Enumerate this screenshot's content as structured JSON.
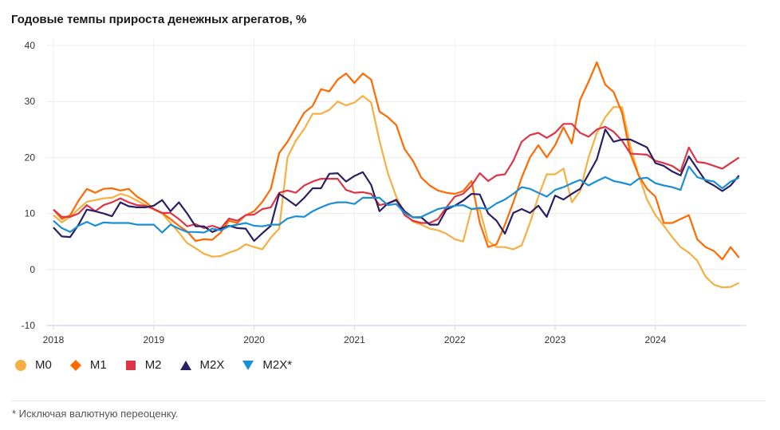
{
  "chart_data": {
    "type": "line",
    "title": "Годовые темпы прироста денежных агрегатов, %",
    "xlabel": "",
    "ylabel": "",
    "ylim": [
      -10,
      40
    ],
    "yticks": [
      "40",
      "30",
      "20",
      "10",
      "0",
      "-10"
    ],
    "xticks": [
      "2018",
      "2019",
      "2020",
      "2021",
      "2022",
      "2023",
      "2024"
    ],
    "grid": true,
    "legend_position": "bottom-left",
    "x": [
      "2018-01",
      "2018-02",
      "2018-03",
      "2018-04",
      "2018-05",
      "2018-06",
      "2018-07",
      "2018-08",
      "2018-09",
      "2018-10",
      "2018-11",
      "2018-12",
      "2019-01",
      "2019-02",
      "2019-03",
      "2019-04",
      "2019-05",
      "2019-06",
      "2019-07",
      "2019-08",
      "2019-09",
      "2019-10",
      "2019-11",
      "2019-12",
      "2020-01",
      "2020-02",
      "2020-03",
      "2020-04",
      "2020-05",
      "2020-06",
      "2020-07",
      "2020-08",
      "2020-09",
      "2020-10",
      "2020-11",
      "2020-12",
      "2021-01",
      "2021-02",
      "2021-03",
      "2021-04",
      "2021-05",
      "2021-06",
      "2021-07",
      "2021-08",
      "2021-09",
      "2021-10",
      "2021-11",
      "2021-12",
      "2022-01",
      "2022-02",
      "2022-03",
      "2022-04",
      "2022-05",
      "2022-06",
      "2022-07",
      "2022-08",
      "2022-09",
      "2022-10",
      "2022-11",
      "2022-12",
      "2023-01",
      "2023-02",
      "2023-03",
      "2023-04",
      "2023-05",
      "2023-06",
      "2023-07",
      "2023-08",
      "2023-09",
      "2023-10",
      "2023-11",
      "2023-12",
      "2024-01",
      "2024-02",
      "2024-03",
      "2024-04",
      "2024-05",
      "2024-06",
      "2024-07",
      "2024-08",
      "2024-09",
      "2024-10",
      "2024-11"
    ],
    "series": [
      {
        "name": "M0",
        "color": "#f5b041",
        "marker": "circle",
        "values": [
          9.7,
          8.4,
          9.4,
          10.8,
          12.1,
          12.4,
          12.7,
          12.8,
          13.5,
          13.1,
          12.3,
          11.5,
          10.7,
          10,
          8.3,
          6.6,
          4.7,
          3.8,
          2.8,
          2.3,
          2.4,
          3,
          3.5,
          4.5,
          4.0,
          3.6,
          5.7,
          7.3,
          20,
          23,
          25.1,
          27.8,
          27.8,
          28.5,
          30,
          29.3,
          29.8,
          31,
          29.8,
          23,
          17.2,
          13,
          10,
          8.5,
          8,
          7.3,
          7,
          6.4,
          5.4,
          5,
          10.8,
          10.7,
          5.1,
          4,
          4,
          3.6,
          4.3,
          8.3,
          13,
          17,
          17,
          18,
          12,
          14,
          20,
          24.4,
          27.2,
          29,
          29,
          22,
          16.8,
          12.5,
          9.7,
          7.8,
          5.8,
          4,
          3,
          1.6,
          -1.3,
          -2.7,
          -3.2,
          -3.1,
          -2.4
        ]
      },
      {
        "name": "M1",
        "color": "#ff6a00",
        "marker": "diamond",
        "values": [
          10.7,
          9,
          9.7,
          12.3,
          14.4,
          13.7,
          14.4,
          14.5,
          14.1,
          14.4,
          13,
          12.1,
          10.8,
          10.1,
          9,
          7.8,
          6.8,
          5.1,
          5.4,
          5.3,
          6.6,
          8.7,
          8.3,
          9.7,
          10.4,
          12.1,
          14.4,
          20.8,
          22.8,
          25.4,
          28,
          29.2,
          32.2,
          31.8,
          33.9,
          35,
          33.3,
          35,
          33.9,
          28.2,
          27.2,
          25.8,
          21.5,
          19.4,
          16.4,
          15,
          14.1,
          13.7,
          13.5,
          14,
          15.8,
          8.3,
          4,
          4.5,
          8,
          12,
          16.4,
          20,
          22.2,
          20,
          22.2,
          25.4,
          22.5,
          30.3,
          33.5,
          37,
          33,
          31.7,
          28,
          20.6,
          16.8,
          14.4,
          13,
          8.3,
          8.3,
          9,
          9.7,
          5.4,
          4,
          3.3,
          1.8,
          4,
          2.1
        ]
      },
      {
        "name": "M2",
        "color": "#dc3545",
        "marker": "square",
        "values": [
          10.7,
          9.4,
          9.4,
          10,
          11.5,
          10.4,
          11.5,
          12,
          12.7,
          12,
          11.5,
          11.4,
          10.8,
          10.1,
          10.1,
          9,
          7.7,
          8.1,
          7.4,
          7.8,
          7.3,
          9.1,
          8.7,
          9.7,
          9.8,
          10.8,
          11.1,
          13.7,
          14.1,
          13.7,
          15,
          15.7,
          16.2,
          16.2,
          16.2,
          14.2,
          13.7,
          13.8,
          13.5,
          11.5,
          11.8,
          12.5,
          9.7,
          8.7,
          8.3,
          8.3,
          9,
          11.1,
          13,
          13.5,
          15,
          17.2,
          15.8,
          16.8,
          17,
          19.4,
          22.8,
          24,
          24.4,
          23.5,
          24.4,
          26,
          26,
          24.4,
          23.7,
          25,
          25.5,
          24.6,
          23,
          20.7,
          20.6,
          20.5,
          19.4,
          19,
          18.5,
          17.5,
          21.8,
          19.2,
          19,
          18.5,
          18,
          19,
          20
        ]
      },
      {
        "name": "M2X",
        "color": "#2b1f63",
        "marker": "triangle-up",
        "values": [
          7.5,
          5.9,
          5.8,
          8,
          10.7,
          10.4,
          10,
          9.5,
          12,
          11.3,
          11.1,
          11.1,
          11.4,
          12.4,
          10.4,
          12,
          10,
          7.7,
          7.7,
          6.7,
          7.3,
          7.8,
          7.4,
          7.3,
          5.1,
          6.5,
          7.8,
          13.5,
          12.5,
          11.4,
          12.8,
          14.5,
          14.5,
          17.1,
          17.2,
          15.7,
          16.7,
          17.4,
          15.1,
          10.4,
          11.8,
          12.4,
          10.4,
          9.3,
          9.3,
          8,
          8,
          10.7,
          11.4,
          12.3,
          13.5,
          13.4,
          10,
          8.7,
          6.4,
          10.1,
          10.8,
          10.1,
          11.4,
          9.4,
          13.2,
          12.5,
          13.5,
          14.4,
          17,
          19.7,
          25,
          22.8,
          23.2,
          23.2,
          22.5,
          21.8,
          19,
          18.5,
          17.5,
          16.8,
          20.2,
          18,
          15.8,
          15,
          14,
          15,
          16.8
        ]
      },
      {
        "name": "M2X*",
        "color": "#1a8fd6",
        "marker": "triangle-down",
        "values": [
          8.7,
          7.4,
          6.7,
          7.8,
          8.5,
          7.8,
          8.4,
          8.3,
          8.3,
          8.3,
          8,
          8,
          8,
          6.6,
          8,
          7.3,
          6.7,
          6.7,
          6.6,
          7.3,
          7,
          7.7,
          8,
          8.3,
          7.8,
          7.7,
          8,
          8,
          9.1,
          9.5,
          9.4,
          10.4,
          11.1,
          11.7,
          12,
          12,
          11.7,
          12.8,
          12.8,
          12.8,
          11.5,
          11.7,
          10.1,
          9.3,
          9.4,
          10.1,
          10.8,
          11.1,
          11.4,
          11.5,
          10.8,
          11,
          10.8,
          11.8,
          12.5,
          13.5,
          14.7,
          14.4,
          13.7,
          13,
          14.2,
          14.7,
          15.4,
          16,
          15,
          15.8,
          16.5,
          15.8,
          15.5,
          15.1,
          16.2,
          16.4,
          15.4,
          15,
          14.7,
          14.2,
          18.4,
          16.5,
          16,
          15.7,
          14.5,
          15.7,
          16.4
        ]
      }
    ]
  },
  "footnote": "* Исключая валютную переоценку."
}
